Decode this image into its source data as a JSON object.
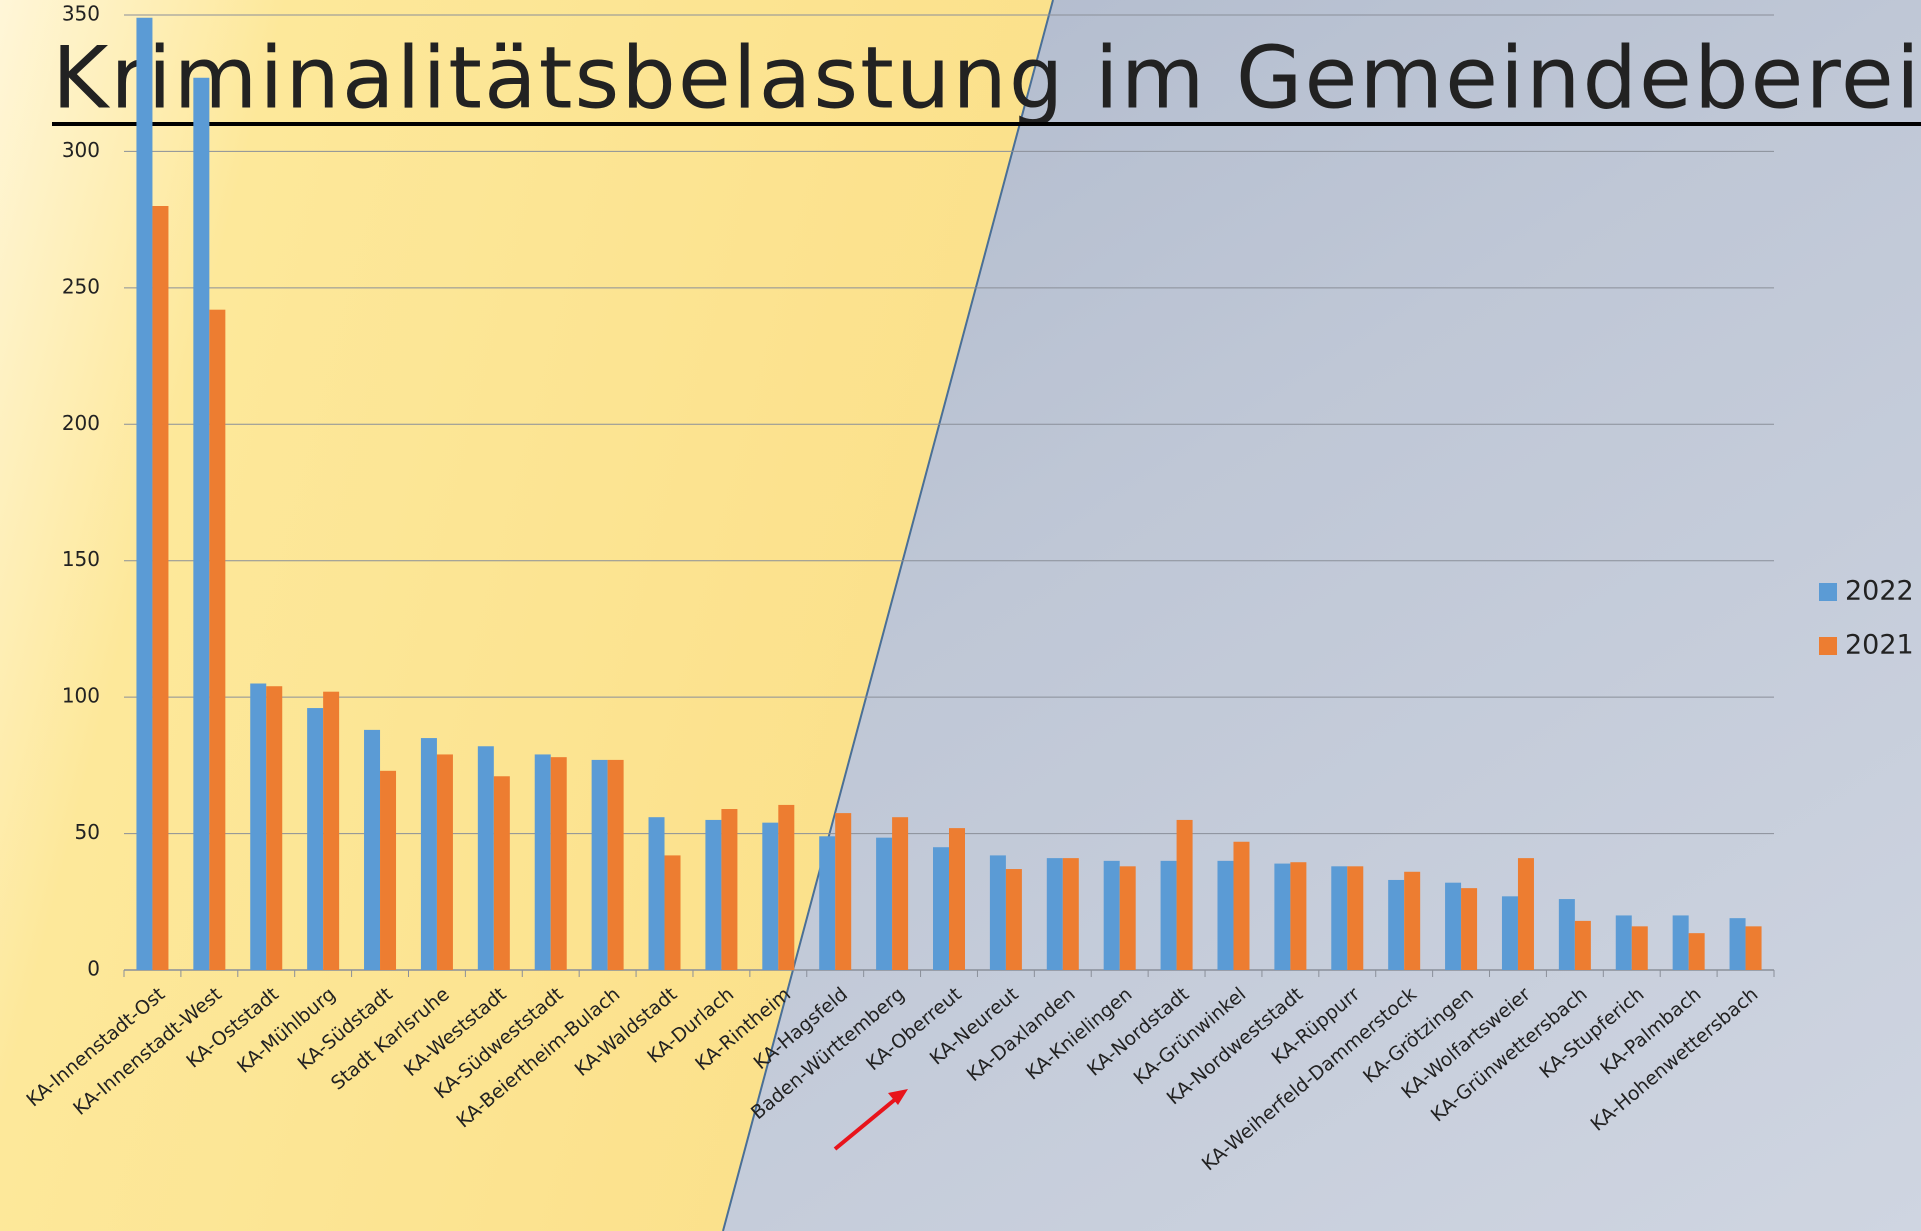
{
  "chart_data": {
    "type": "bar",
    "title": "Kriminalitätsbelastung im Gemeindebereich",
    "categories": [
      "KA-Innenstadt-Ost",
      "KA-Innenstadt-West",
      "KA-Oststadt",
      "KA-Mühlburg",
      "KA-Südstadt",
      "Stadt Karlsruhe",
      "KA-Weststadt",
      "KA-Südweststadt",
      "KA-Beiertheim-Bulach",
      "KA-Waldstadt",
      "KA-Durlach",
      "KA-Rintheim",
      "KA-Hagsfeld",
      "Baden-Württemberg",
      "KA-Oberreut",
      "KA-Neureut",
      "KA-Daxlanden",
      "KA-Knielingen",
      "KA-Nordstadt",
      "KA-Grünwinkel",
      "KA-Nordweststadt",
      "KA-Rüppurr",
      "KA-Weiherfeld-Dammerstock",
      "KA-Grötzingen",
      "KA-Wolfartsweier",
      "KA-Grünwettersbach",
      "KA-Stupferich",
      "KA-Palmbach",
      "KA-Hohenwettersbach"
    ],
    "series": [
      {
        "name": "2022",
        "color": "#5b9bd5",
        "values": [
          349,
          327,
          105,
          96,
          88,
          85,
          82,
          79,
          77,
          56,
          55,
          54,
          49,
          48.5,
          45,
          42,
          41,
          40,
          40,
          40,
          39,
          38,
          33,
          32,
          27,
          26,
          20,
          20,
          19
        ]
      },
      {
        "name": "2021",
        "color": "#ed7d31",
        "values": [
          280,
          242,
          104,
          102,
          73,
          79,
          71,
          78,
          77,
          42,
          59,
          60.5,
          57.5,
          56,
          52,
          37,
          41,
          38,
          55,
          47,
          39.5,
          38,
          36,
          30,
          41,
          18,
          16,
          13.5,
          16
        ]
      }
    ],
    "ylim": [
      0,
      350
    ],
    "yticks": [
      0,
      50,
      100,
      150,
      200,
      250,
      300,
      350
    ],
    "grid": true,
    "legend": "right"
  }
}
